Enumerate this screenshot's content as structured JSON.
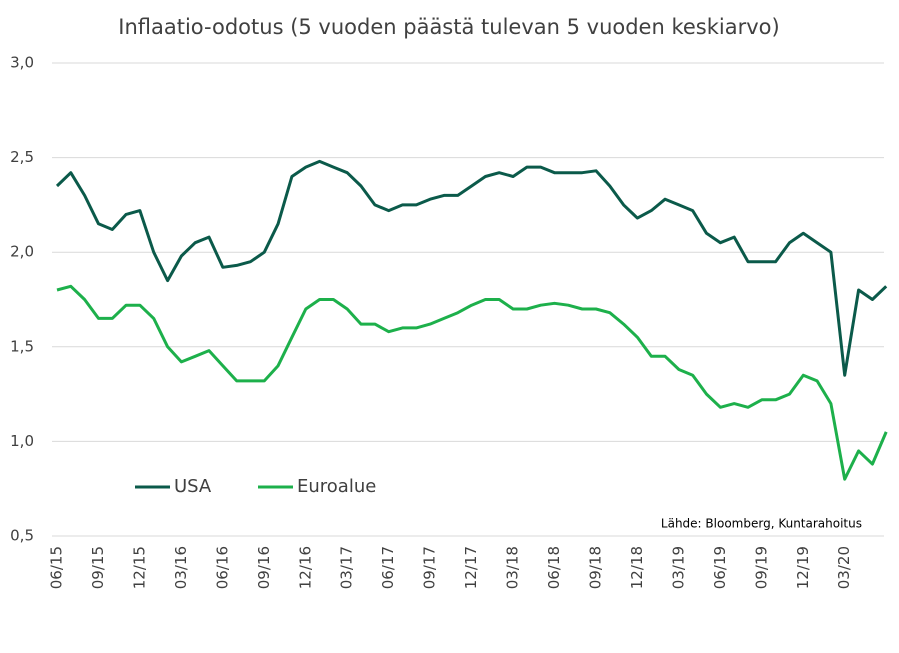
{
  "chart_data": {
    "type": "line",
    "title": "Inflaatio-odotus (5 vuoden päästä tulevan 5 vuoden keskiarvo)",
    "source": "Lähde: Bloomberg, Kuntarahoitus",
    "x": [
      "06/15",
      "07/15",
      "08/15",
      "09/15",
      "10/15",
      "11/15",
      "12/15",
      "01/16",
      "02/16",
      "03/16",
      "04/16",
      "05/16",
      "06/16",
      "07/16",
      "08/16",
      "09/16",
      "10/16",
      "11/16",
      "12/16",
      "01/17",
      "02/17",
      "03/17",
      "04/17",
      "05/17",
      "06/17",
      "07/17",
      "08/17",
      "09/17",
      "10/17",
      "11/17",
      "12/17",
      "01/18",
      "02/18",
      "03/18",
      "04/18",
      "05/18",
      "06/18",
      "07/18",
      "08/18",
      "09/18",
      "10/18",
      "11/18",
      "12/18",
      "01/19",
      "02/19",
      "03/19",
      "04/19",
      "05/19",
      "06/19",
      "07/19",
      "08/19",
      "09/19",
      "10/19",
      "11/19",
      "12/19",
      "01/20",
      "02/20",
      "03/20",
      "04/20",
      "05/20",
      "06/20"
    ],
    "xticks": [
      "06/15",
      "09/15",
      "12/15",
      "03/16",
      "06/16",
      "09/16",
      "12/16",
      "03/17",
      "06/17",
      "09/17",
      "12/17",
      "03/18",
      "06/18",
      "09/18",
      "12/18",
      "03/19",
      "06/19",
      "09/19",
      "12/19",
      "03/20"
    ],
    "series": [
      {
        "name": "USA",
        "color": "#0b5a4a",
        "values": [
          2.35,
          2.42,
          2.3,
          2.15,
          2.12,
          2.2,
          2.22,
          2.0,
          1.85,
          1.98,
          2.05,
          2.08,
          1.92,
          1.93,
          1.95,
          2.0,
          2.15,
          2.4,
          2.45,
          2.48,
          2.45,
          2.42,
          2.35,
          2.25,
          2.22,
          2.25,
          2.25,
          2.28,
          2.3,
          2.3,
          2.35,
          2.4,
          2.42,
          2.4,
          2.45,
          2.45,
          2.42,
          2.42,
          2.42,
          2.43,
          2.35,
          2.25,
          2.18,
          2.22,
          2.28,
          2.25,
          2.22,
          2.1,
          2.05,
          2.08,
          1.95,
          1.95,
          1.95,
          2.05,
          2.1,
          2.05,
          2.0,
          1.35,
          1.8,
          1.75,
          1.82
        ]
      },
      {
        "name": "Euroalue",
        "color": "#1db04b",
        "values": [
          1.8,
          1.82,
          1.75,
          1.65,
          1.65,
          1.72,
          1.72,
          1.65,
          1.5,
          1.42,
          1.45,
          1.48,
          1.4,
          1.32,
          1.32,
          1.32,
          1.4,
          1.55,
          1.7,
          1.75,
          1.75,
          1.7,
          1.62,
          1.62,
          1.58,
          1.6,
          1.6,
          1.62,
          1.65,
          1.68,
          1.72,
          1.75,
          1.75,
          1.7,
          1.7,
          1.72,
          1.73,
          1.72,
          1.7,
          1.7,
          1.68,
          1.62,
          1.55,
          1.45,
          1.45,
          1.38,
          1.35,
          1.25,
          1.18,
          1.2,
          1.18,
          1.22,
          1.22,
          1.25,
          1.35,
          1.32,
          1.2,
          0.8,
          0.95,
          0.88,
          1.05
        ]
      }
    ],
    "ylim": [
      0.5,
      3.0
    ],
    "yticks": [
      {
        "value": 0.5,
        "label": "0,5"
      },
      {
        "value": 1.0,
        "label": "1,0"
      },
      {
        "value": 1.5,
        "label": "1,5"
      },
      {
        "value": 2.0,
        "label": "2,0"
      },
      {
        "value": 2.5,
        "label": "2,5"
      },
      {
        "value": 3.0,
        "label": "3,0"
      }
    ],
    "grid": true
  }
}
